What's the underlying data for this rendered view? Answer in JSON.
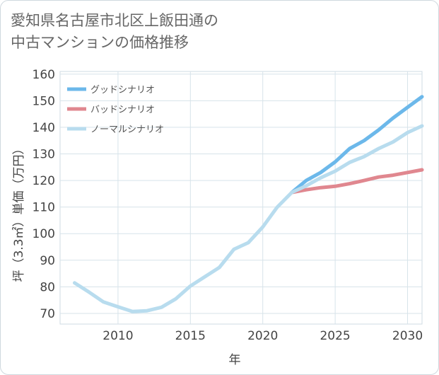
{
  "title_line1": "愛知県名古屋市北区上飯田通の",
  "title_line2": "中古マンションの価格推移",
  "chart_data": {
    "type": "line",
    "xlabel": "年",
    "ylabel": "坪（3.3㎡）単価（万円）",
    "xlim": [
      2006,
      2031
    ],
    "ylim": [
      66,
      161
    ],
    "xticks": [
      2010,
      2015,
      2020,
      2025,
      2030
    ],
    "yticks": [
      70,
      80,
      90,
      100,
      110,
      120,
      130,
      140,
      150,
      160
    ],
    "grid": true,
    "legend_position": "top-left",
    "series": [
      {
        "name": "グッドシナリオ",
        "color": "#6cb8ea",
        "x": [
          2022,
          2023,
          2024,
          2025,
          2026,
          2027,
          2028,
          2029,
          2030,
          2031
        ],
        "y": [
          115.5,
          120,
          123,
          127,
          132,
          135,
          139,
          143.5,
          147.5,
          151.5
        ]
      },
      {
        "name": "バッドシナリオ",
        "color": "#e0878f",
        "x": [
          2022,
          2023,
          2024,
          2025,
          2026,
          2027,
          2028,
          2029,
          2030,
          2031
        ],
        "y": [
          115.5,
          116.5,
          117.3,
          117.8,
          118.8,
          120,
          121.3,
          122,
          123,
          124
        ]
      },
      {
        "name": "ノーマルシナリオ",
        "color": "#b8dcee",
        "x": [
          2007,
          2008,
          2009,
          2010,
          2011,
          2012,
          2013,
          2014,
          2015,
          2016,
          2017,
          2018,
          2019,
          2020,
          2021,
          2022,
          2023,
          2024,
          2025,
          2026,
          2027,
          2028,
          2029,
          2030,
          2031
        ],
        "y": [
          81.5,
          78,
          74.3,
          72.5,
          70.7,
          71,
          72.3,
          75.5,
          80.3,
          83.8,
          87.3,
          94.1,
          96.6,
          102.5,
          110,
          115.5,
          118,
          121,
          123.5,
          126.8,
          129,
          132,
          134.5,
          138,
          140.5
        ]
      }
    ]
  }
}
